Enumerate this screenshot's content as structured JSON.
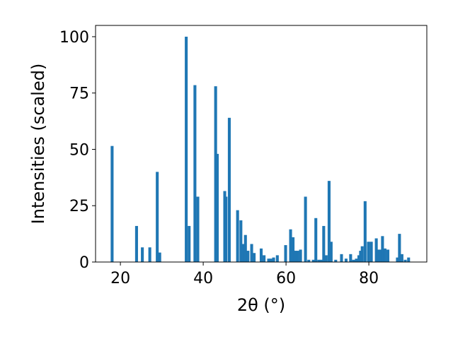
{
  "chart_data": {
    "type": "bar",
    "xlabel": "2θ (°)",
    "ylabel": "Intensities (scaled)",
    "xlim": [
      14,
      94
    ],
    "ylim": [
      0,
      105
    ],
    "xticks": [
      20,
      40,
      60,
      80
    ],
    "yticks": [
      0,
      25,
      50,
      75,
      100
    ],
    "grid": false,
    "bar_width": 0.7,
    "bar_color": "#1f77b4",
    "x": [
      18.0,
      23.9,
      25.3,
      27.1,
      28.9,
      29.5,
      35.9,
      36.6,
      38.0,
      38.7,
      43.0,
      43.4,
      45.2,
      45.5,
      46.3,
      48.3,
      49.1,
      49.7,
      50.2,
      50.8,
      51.7,
      52.3,
      54.0,
      54.7,
      55.8,
      56.3,
      57.0,
      57.9,
      59.9,
      61.1,
      61.7,
      62.2,
      62.8,
      63.5,
      64.7,
      65.5,
      66.6,
      67.2,
      67.9,
      68.5,
      69.1,
      69.7,
      70.4,
      70.9,
      72.0,
      73.4,
      74.5,
      75.6,
      76.3,
      77.0,
      77.6,
      78.0,
      78.4,
      79.1,
      79.9,
      80.6,
      81.8,
      82.3,
      82.8,
      83.3,
      83.9,
      84.6,
      86.9,
      87.4,
      88.0,
      88.8,
      89.6
    ],
    "values": [
      51.5,
      16,
      6.5,
      6.5,
      40,
      4.2,
      100,
      16,
      78.5,
      29,
      78,
      48,
      31.5,
      29,
      64,
      23,
      18.5,
      8,
      12,
      5,
      8,
      4,
      6,
      3,
      1.5,
      1.5,
      2,
      3,
      7.5,
      14.5,
      11,
      5,
      5,
      5.5,
      29,
      1,
      1,
      19.5,
      1,
      1,
      16,
      3,
      36,
      9,
      1,
      3.5,
      1.5,
      3.5,
      1,
      1.5,
      3,
      5,
      7,
      27,
      9,
      9,
      10.5,
      5.5,
      5.5,
      11.5,
      6,
      5.5,
      2,
      12.5,
      3.5,
      1,
      2
    ]
  }
}
